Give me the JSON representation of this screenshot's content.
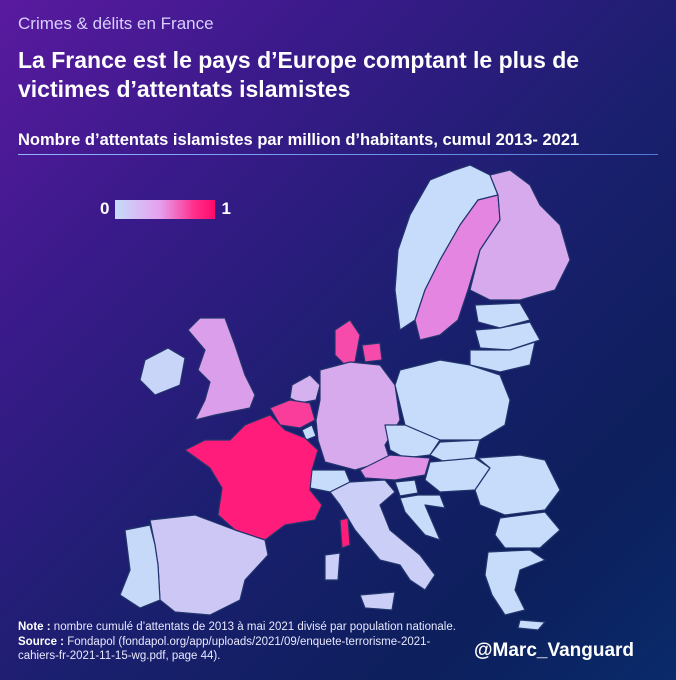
{
  "header": {
    "kicker": "Crimes & délits en France",
    "title": "La France est le pays d’Europe comptant le plus de victimes d’attentats islamistes",
    "subtitle": "Nombre d’attentats islamistes par million d’habitants, cumul 2013- 2021"
  },
  "legend": {
    "min_label": "0",
    "max_label": "1",
    "low_color": "#c6dcfa",
    "high_color": "#ff0a6a"
  },
  "footer": {
    "note_label": "Note :",
    "note_text": "nombre cumulé d’attentats de 2013 à mai 2021 divisé par population nationale.",
    "source_label": "Source :",
    "source_text": "Fondapol (fondapol.org/app/uploads/2021/09/enquete-terrorisme-2021-cahiers-fr-2021-11-15-wg.pdf, page 44).",
    "handle": "@Marc_Vanguard"
  },
  "chart_data": {
    "type": "choropleth",
    "title": "La France est le pays d’Europe comptant le plus de victimes d’attentats islamistes",
    "subtitle": "Nombre d’attentats islamistes par million d’habitants, cumul 2013- 2021",
    "scale": {
      "min": 0,
      "max": 1,
      "colors": [
        "#c6dcfa",
        "#ff0a6a"
      ]
    },
    "regions": [
      {
        "id": "france",
        "value": 0.9
      },
      {
        "id": "belgium",
        "value": 0.75
      },
      {
        "id": "denmark",
        "value": 0.7
      },
      {
        "id": "sweden",
        "value": 0.5
      },
      {
        "id": "austria",
        "value": 0.45
      },
      {
        "id": "germany",
        "value": 0.35
      },
      {
        "id": "finland",
        "value": 0.35
      },
      {
        "id": "uk",
        "value": 0.4
      },
      {
        "id": "netherlands",
        "value": 0.3
      },
      {
        "id": "ireland",
        "value": 0.05
      },
      {
        "id": "spain",
        "value": 0.15
      },
      {
        "id": "portugal",
        "value": 0.02
      },
      {
        "id": "italy",
        "value": 0.1
      },
      {
        "id": "poland",
        "value": 0
      },
      {
        "id": "czechia",
        "value": 0
      },
      {
        "id": "slovakia",
        "value": 0
      },
      {
        "id": "hungary",
        "value": 0
      },
      {
        "id": "romania",
        "value": 0
      },
      {
        "id": "bulgaria",
        "value": 0
      },
      {
        "id": "greece",
        "value": 0
      },
      {
        "id": "croatia",
        "value": 0
      },
      {
        "id": "slovenia",
        "value": 0
      },
      {
        "id": "estonia",
        "value": 0
      },
      {
        "id": "latvia",
        "value": 0
      },
      {
        "id": "lithuania",
        "value": 0
      },
      {
        "id": "switzerland",
        "value": 0
      },
      {
        "id": "norway",
        "value": 0
      },
      {
        "id": "luxembourg",
        "value": 0
      }
    ]
  }
}
